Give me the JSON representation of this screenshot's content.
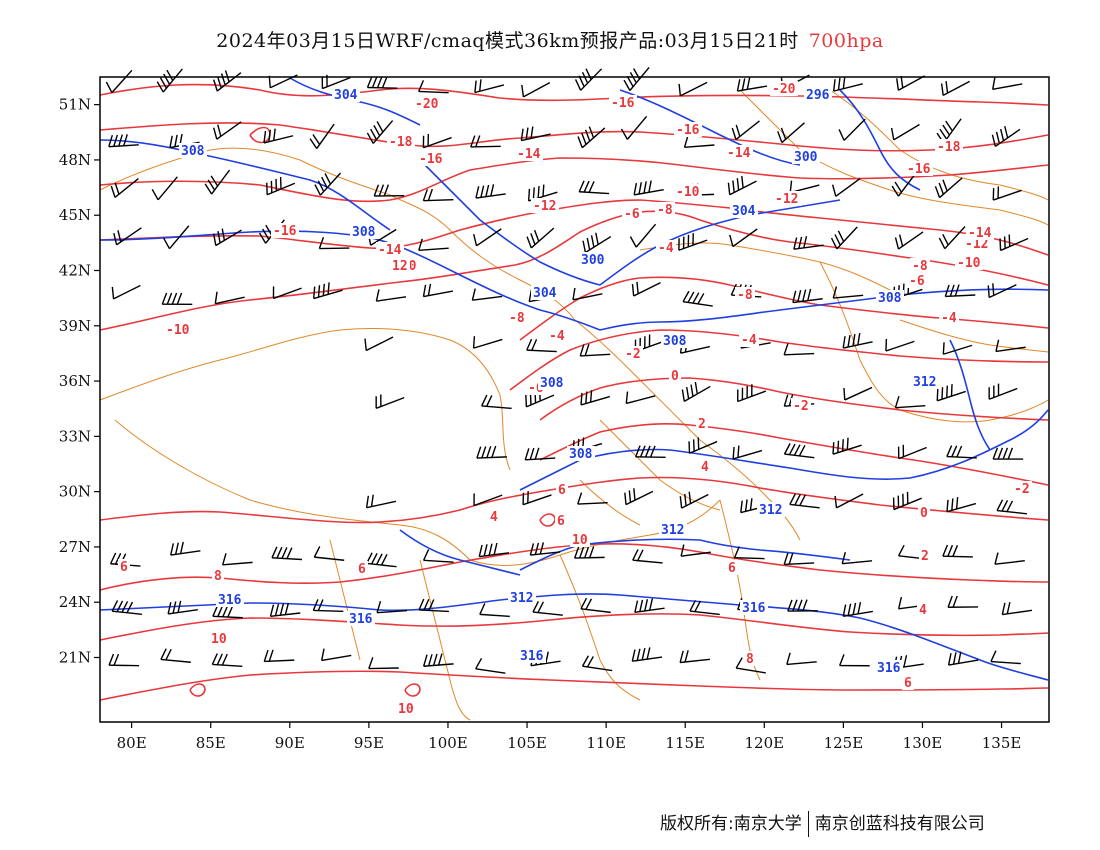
{
  "title": {
    "main": "2024年03月15日WRF/cmaq模式36km预报产品:03月15日21时",
    "level": "700hpa"
  },
  "map": {
    "lon_labels": [
      "80E",
      "85E",
      "90E",
      "95E",
      "100E",
      "105E",
      "110E",
      "115E",
      "120E",
      "125E",
      "130E",
      "135E"
    ],
    "lat_labels": [
      "51N",
      "48N",
      "45N",
      "42N",
      "39N",
      "36N",
      "33N",
      "30N",
      "27N",
      "24N",
      "21N"
    ],
    "lon_range": [
      78,
      138
    ],
    "lat_range": [
      17.5,
      52.5
    ],
    "colors": {
      "frame": "#000000",
      "temperature_contour": "#e8383c",
      "height_contour": "#1f3fe0",
      "boundaries": "#e0892a",
      "wind_barbs": "#000000"
    },
    "temperature_labels": [
      "-20",
      "-18",
      "-16",
      "-14",
      "-12",
      "-10",
      "-8",
      "-6",
      "-4",
      "-2",
      "0",
      "2",
      "4",
      "6",
      "8",
      "10",
      "12"
    ],
    "height_labels": [
      "296",
      "300",
      "304",
      "308",
      "312",
      "316"
    ],
    "layers": [
      "temperature isotherms (°C)",
      "geopotential height (dagpm)",
      "wind barbs",
      "province/country boundaries"
    ]
  },
  "footer": {
    "left": "版权所有:南京大学",
    "right": "南京创蓝科技有限公司"
  }
}
